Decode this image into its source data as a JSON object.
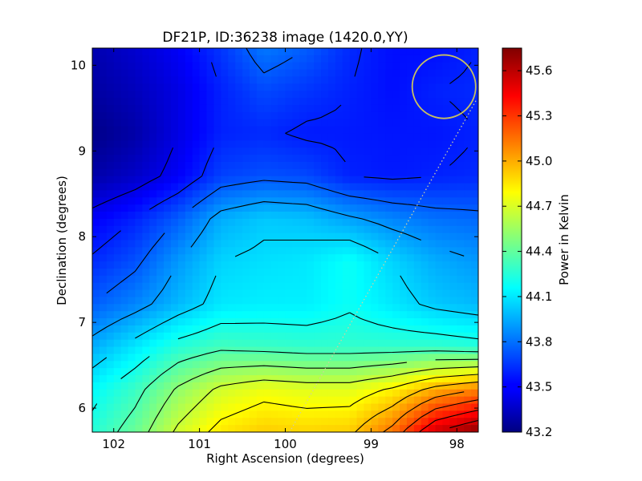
{
  "chart_data": {
    "type": "heatmap",
    "title": "DF21P, ID:36238 image (1420.0,YY)",
    "xlabel": "Right Ascension (degrees)",
    "ylabel": "Declination (degrees)",
    "colorbar_label": "Power in Kelvin",
    "colormap": "jet",
    "xlim": [
      102.25,
      97.75
    ],
    "ylim": [
      5.72,
      10.2
    ],
    "x_ticks": [
      102,
      101,
      100,
      99,
      98
    ],
    "x_tick_labels": [
      "102",
      "101",
      "100",
      "99",
      "98"
    ],
    "y_ticks": [
      6,
      7,
      8,
      9,
      10
    ],
    "y_tick_labels": [
      "6",
      "7",
      "8",
      "9",
      "10"
    ],
    "clim": [
      43.2,
      45.75
    ],
    "colorbar_ticks": [
      43.2,
      43.5,
      43.8,
      44.1,
      44.4,
      44.7,
      45.0,
      45.3,
      45.6
    ],
    "colorbar_tick_labels": [
      "43.2",
      "43.5",
      "43.8",
      "44.1",
      "44.4",
      "44.7",
      "45.0",
      "45.3",
      "45.6"
    ],
    "grid_ra": [
      102.25,
      101.75,
      101.25,
      100.75,
      100.25,
      99.75,
      99.25,
      98.75,
      98.25,
      97.75
    ],
    "grid_dec": [
      10.2,
      9.7,
      9.2,
      8.7,
      8.2,
      7.7,
      7.2,
      6.7,
      6.2,
      5.72
    ],
    "grid_values": [
      [
        43.32,
        43.4,
        43.5,
        43.65,
        43.82,
        43.75,
        43.62,
        43.55,
        43.55,
        43.6
      ],
      [
        43.28,
        43.35,
        43.45,
        43.6,
        43.7,
        43.65,
        43.6,
        43.55,
        43.6,
        43.62
      ],
      [
        43.22,
        43.3,
        43.45,
        43.6,
        43.62,
        43.58,
        43.58,
        43.57,
        43.57,
        43.6
      ],
      [
        43.3,
        43.38,
        43.5,
        43.68,
        43.72,
        43.7,
        43.6,
        43.58,
        43.6,
        43.62
      ],
      [
        43.5,
        43.6,
        43.75,
        43.95,
        44.02,
        44.0,
        43.92,
        43.85,
        43.8,
        43.78
      ],
      [
        43.62,
        43.72,
        43.9,
        44.05,
        44.08,
        44.1,
        44.18,
        44.05,
        43.95,
        43.9
      ],
      [
        43.75,
        43.85,
        43.98,
        44.1,
        44.12,
        44.12,
        44.18,
        44.1,
        44.02,
        43.98
      ],
      [
        43.95,
        44.1,
        44.25,
        44.32,
        44.3,
        44.28,
        44.28,
        44.28,
        44.28,
        44.25
      ],
      [
        44.15,
        44.3,
        44.52,
        44.68,
        44.75,
        44.72,
        44.72,
        44.82,
        45.0,
        45.1
      ],
      [
        44.25,
        44.42,
        44.68,
        44.85,
        44.92,
        44.9,
        44.92,
        45.15,
        45.55,
        45.72
      ]
    ],
    "contour_levels": [
      43.45,
      43.6,
      43.75,
      43.9,
      44.05,
      44.2,
      44.35,
      44.5,
      44.65,
      44.8,
      44.95,
      45.1,
      45.25,
      45.4,
      45.55
    ],
    "contour_color": "#000000",
    "beam_circle": {
      "ra": 98.15,
      "dec": 9.75,
      "radius_deg": 0.37,
      "color": "#c8c060"
    },
    "scan_track": {
      "start": {
        "ra": 99.95,
        "dec": 5.72
      },
      "end": {
        "ra": 97.77,
        "dec": 9.6
      },
      "color": "#d0d0a0"
    },
    "background": "#ffffff"
  }
}
